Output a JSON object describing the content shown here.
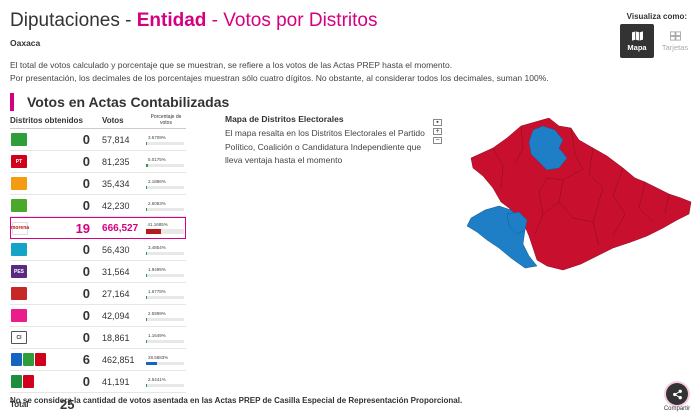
{
  "header": {
    "prefix": "Diputaciones - ",
    "entity_word": "Entidad",
    "suffix": " - Votos por Distritos",
    "entity_name": "Oaxaca",
    "note_1": "El total de votos calculado y porcentaje que se muestran, se refiere a los votos de las Actas PREP hasta el momento.",
    "note_2": "Por presentación, los decimales de los porcentajes muestran sólo cuatro dígitos. No obstante, al considerar todos los decimales, suman 100%."
  },
  "visualiza": {
    "label": "Visualiza como:",
    "map_label": "Mapa",
    "cards_label": "Tarjetas"
  },
  "section": {
    "title": "Votos en Actas Contabilizadas"
  },
  "table": {
    "col_districts": "Distritos obtenidos",
    "col_votes": "Votos",
    "col_pct": "Porcentaje de votos",
    "rows": [
      {
        "party": "PAN-PRD-MC",
        "districts": "0",
        "votes": "57,814",
        "pct": "3.5709%",
        "pct_value": 3.5709,
        "color": "#2e9e3b",
        "text": ""
      },
      {
        "party": "PT",
        "districts": "0",
        "votes": "81,235",
        "pct": "5.0175%",
        "pct_value": 5.0175,
        "color": "#d0021b",
        "text": "PT"
      },
      {
        "party": "Fuerza por Mexico",
        "districts": "0",
        "votes": "35,434",
        "pct": "2.1886%",
        "pct_value": 2.1886,
        "color": "#f39c12",
        "text": ""
      },
      {
        "party": "PVEM",
        "districts": "0",
        "votes": "42,230",
        "pct": "2.6083%",
        "pct_value": 2.6083,
        "color": "#4aa82c",
        "text": ""
      },
      {
        "party": "MORENA",
        "districts": "19",
        "votes": "666,527",
        "pct": "41.1685%",
        "pct_value": 41.1685,
        "color": "#b71c1c",
        "text": "morena"
      },
      {
        "party": "Nueva Alianza",
        "districts": "0",
        "votes": "56,430",
        "pct": "3.4854%",
        "pct_value": 3.4854,
        "color": "#16a3c8",
        "text": ""
      },
      {
        "party": "PES",
        "districts": "0",
        "votes": "31,564",
        "pct": "1.9495%",
        "pct_value": 1.9495,
        "color": "#5a2a82",
        "text": "PES"
      },
      {
        "party": "RSP",
        "districts": "0",
        "votes": "27,164",
        "pct": "1.6778%",
        "pct_value": 1.6778,
        "color": "#c62828",
        "text": ""
      },
      {
        "party": "FXM",
        "districts": "0",
        "votes": "42,094",
        "pct": "2.5999%",
        "pct_value": 2.5999,
        "color": "#e91e8c",
        "text": ""
      },
      {
        "party": "CI",
        "districts": "0",
        "votes": "18,861",
        "pct": "1.1649%",
        "pct_value": 1.1649,
        "color": "#ffffff",
        "text": "CI"
      },
      {
        "party": "PAN-PRI-PRD",
        "districts": "6",
        "votes": "462,851",
        "pct": "28.5883%",
        "pct_value": 28.5883,
        "color": "#1565c0",
        "text": ""
      },
      {
        "party": "PT-MORENA",
        "districts": "0",
        "votes": "41,191",
        "pct": "2.5441%",
        "pct_value": 2.5441,
        "color": "#c62828",
        "text": ""
      }
    ],
    "total_label": "Total",
    "total_value": "25"
  },
  "map": {
    "title": "Mapa de Distritos Electorales",
    "description": "El mapa resalta en los Distritos Electorales el Partido Político, Coalición o Candidatura Independiente que lleva ventaja hasta el momento",
    "zoom_in": "+",
    "zoom_out": "−",
    "reset": "▪",
    "colors": {
      "red": "#c8102e",
      "blue": "#1e7fc7"
    }
  },
  "footer": {
    "note": "No se considera la cantidad de votos asentada en las Actas PREP de Casilla Especial de Representación Proporcional."
  },
  "share": {
    "label": "Compartir"
  },
  "accent_color": "#d5007f"
}
